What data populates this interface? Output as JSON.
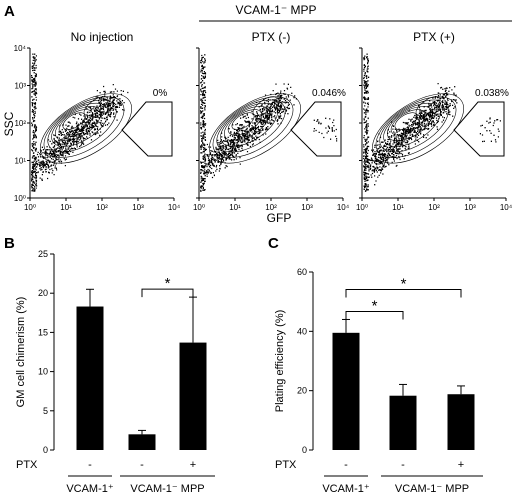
{
  "panels": {
    "a_label": "A",
    "b_label": "B",
    "c_label": "C"
  },
  "flow": {
    "group_label": "VCAM-1⁻ MPP",
    "xlabel": "GFP",
    "ylabel": "SSC",
    "x_ticks": [
      "10⁰",
      "10¹",
      "10²",
      "10³",
      "10⁴"
    ],
    "y_ticks": [
      "10⁰",
      "10¹",
      "10²",
      "10³",
      "10⁴"
    ],
    "plots": [
      {
        "title": "No injection",
        "gate_percent": "0%",
        "gate_events": 0
      },
      {
        "title": "PTX (-)",
        "gate_percent": "0.046%",
        "gate_events": 35
      },
      {
        "title": "PTX (+)",
        "gate_percent": "0.038%",
        "gate_events": 28
      }
    ]
  },
  "chart_data": [
    {
      "type": "bar",
      "panel": "B",
      "ylabel": "GM cell chimerism (%)",
      "ylim": [
        0,
        25
      ],
      "y_ticks": [
        0,
        5,
        10,
        15,
        20,
        25
      ],
      "categories": [
        "VCAM-1+",
        "VCAM-1- MPP PTX -",
        "VCAM-1- MPP PTX +"
      ],
      "values": [
        18.3,
        2.0,
        13.7
      ],
      "errors": [
        2.2,
        0.5,
        5.8
      ],
      "ptx_label": "PTX",
      "ptx_values": [
        "-",
        "-",
        "+"
      ],
      "group_labels": [
        "VCAM-1⁺",
        "VCAM-1⁻ MPP"
      ],
      "significance": [
        {
          "from": 1,
          "to": 2,
          "label": "*"
        }
      ]
    },
    {
      "type": "bar",
      "panel": "C",
      "ylabel": "Plating efficiency (%)",
      "ylim": [
        0,
        60
      ],
      "y_ticks": [
        0,
        20,
        40,
        60
      ],
      "categories": [
        "VCAM-1+",
        "VCAM-1- MPP PTX -",
        "VCAM-1- MPP PTX +"
      ],
      "values": [
        39.5,
        18.3,
        18.8
      ],
      "errors": [
        4.5,
        3.8,
        2.8
      ],
      "ptx_label": "PTX",
      "ptx_values": [
        "-",
        "-",
        "+"
      ],
      "group_labels": [
        "VCAM-1⁺",
        "VCAM-1⁻ MPP"
      ],
      "significance": [
        {
          "from": 0,
          "to": 1,
          "label": "*"
        },
        {
          "from": 0,
          "to": 2,
          "label": "*"
        }
      ]
    }
  ]
}
